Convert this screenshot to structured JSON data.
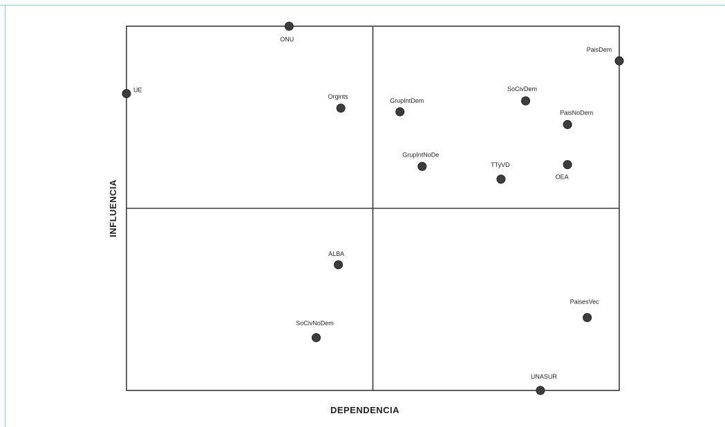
{
  "chart_data": {
    "type": "scatter",
    "xlabel": "DEPENDENCIA",
    "ylabel": "INFLUENCIA",
    "xlim": [
      0,
      2
    ],
    "ylim": [
      0,
      2
    ],
    "grid": false,
    "quadrant_lines": {
      "x": 1,
      "y": 1
    },
    "points": [
      {
        "label": "ONU",
        "x": 0.66,
        "y": 2.0
      },
      {
        "label": "UE",
        "x": 0.0,
        "y": 1.63
      },
      {
        "label": "Orgints",
        "x": 0.87,
        "y": 1.55
      },
      {
        "label": "GrupIntDem",
        "x": 1.11,
        "y": 1.53
      },
      {
        "label": "SoCivDem",
        "x": 1.62,
        "y": 1.59
      },
      {
        "label": "PaisDem",
        "x": 2.0,
        "y": 1.81
      },
      {
        "label": "PaisNoDem",
        "x": 1.79,
        "y": 1.46
      },
      {
        "label": "GrupIntNoDe",
        "x": 1.2,
        "y": 1.23
      },
      {
        "label": "TTyVD",
        "x": 1.52,
        "y": 1.16
      },
      {
        "label": "OEA",
        "x": 1.79,
        "y": 1.24
      },
      {
        "label": "ALBA",
        "x": 0.86,
        "y": 0.69
      },
      {
        "label": "SoCivNoDem",
        "x": 0.77,
        "y": 0.29
      },
      {
        "label": "PaisesVec",
        "x": 1.87,
        "y": 0.4
      },
      {
        "label": "UNASUR",
        "x": 1.68,
        "y": 0.0
      }
    ]
  }
}
